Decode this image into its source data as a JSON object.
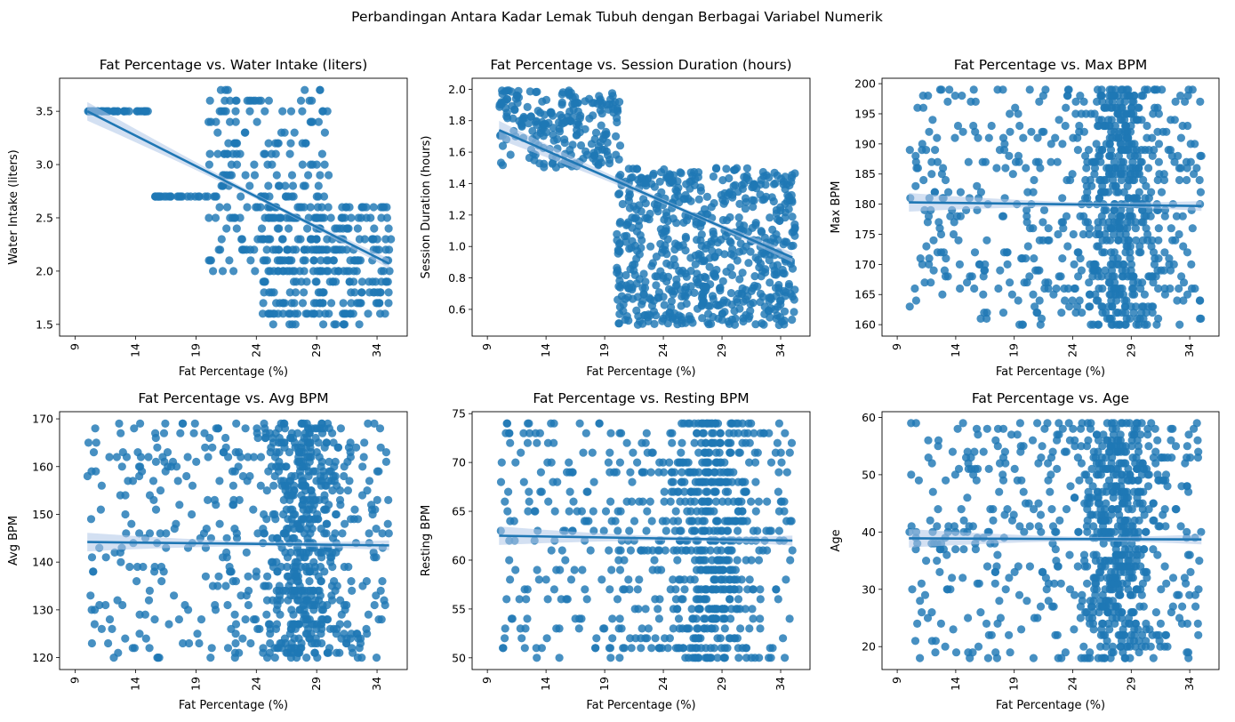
{
  "suptitle": "Perbandingan Antara Kadar Lemak Tubuh dengan Berbagai Variabel Numerik",
  "style": {
    "point_color": "#1f77b4",
    "line_color": "#1f77b4",
    "ci_color": "#aec7e8"
  },
  "chart_data": [
    {
      "type": "scatter",
      "title": "Fat Percentage vs. Water Intake (liters)",
      "xlabel": "Fat Percentage (%)",
      "ylabel": "Water Intake (liters)",
      "xlim": [
        7.7,
        36.5
      ],
      "ylim": [
        1.39,
        3.81
      ],
      "xticks": [
        "9",
        "14",
        "19",
        "24",
        "29",
        "34"
      ],
      "yticks": [
        "1.5",
        "2.0",
        "2.5",
        "3.0",
        "3.5"
      ],
      "regression": {
        "x": [
          10,
          35
        ],
        "y": [
          3.5,
          2.07
        ]
      },
      "gen": {
        "mode": "water",
        "n": 560,
        "seed": 11
      }
    },
    {
      "type": "scatter",
      "title": "Fat Percentage vs. Session Duration (hours)",
      "xlabel": "Fat Percentage (%)",
      "ylabel": "Session Duration (hours)",
      "xlim": [
        7.7,
        36.5
      ],
      "ylim": [
        0.43,
        2.07
      ],
      "xticks": [
        "9",
        "14",
        "19",
        "24",
        "29",
        "34"
      ],
      "yticks": [
        "0.6",
        "0.8",
        "1.0",
        "1.2",
        "1.4",
        "1.6",
        "1.8",
        "2.0"
      ],
      "regression": {
        "x": [
          10,
          35
        ],
        "y": [
          1.74,
          0.93
        ]
      },
      "gen": {
        "mode": "session",
        "n": 880,
        "seed": 23
      }
    },
    {
      "type": "scatter",
      "title": "Fat Percentage vs. Max BPM",
      "xlabel": "Fat Percentage (%)",
      "ylabel": "Max BPM",
      "xlim": [
        7.7,
        36.5
      ],
      "ylim": [
        158.1,
        200.9
      ],
      "xticks": [
        "9",
        "14",
        "19",
        "24",
        "29",
        "34"
      ],
      "yticks": [
        "160",
        "165",
        "170",
        "175",
        "180",
        "185",
        "190",
        "195",
        "200"
      ],
      "regression": {
        "x": [
          10,
          35
        ],
        "y": [
          180.3,
          179.7
        ]
      },
      "gen": {
        "mode": "uniform",
        "n": 820,
        "seed": 37,
        "lo": 160,
        "hi": 199
      }
    },
    {
      "type": "scatter",
      "title": "Fat Percentage vs. Avg BPM",
      "xlabel": "Fat Percentage (%)",
      "ylabel": "Avg BPM",
      "xlim": [
        7.7,
        36.5
      ],
      "ylim": [
        117.5,
        171.5
      ],
      "xticks": [
        "9",
        "14",
        "19",
        "24",
        "29",
        "34"
      ],
      "yticks": [
        "120",
        "130",
        "140",
        "150",
        "160",
        "170"
      ],
      "regression": {
        "x": [
          10,
          35
        ],
        "y": [
          144.2,
          143.5
        ]
      },
      "gen": {
        "mode": "uniform",
        "n": 820,
        "seed": 41,
        "lo": 120,
        "hi": 169
      }
    },
    {
      "type": "scatter",
      "title": "Fat Percentage vs. Resting BPM",
      "xlabel": "Fat Percentage (%)",
      "ylabel": "Resting BPM",
      "xlim": [
        7.7,
        36.5
      ],
      "ylim": [
        48.8,
        75.2
      ],
      "xticks": [
        "9",
        "14",
        "19",
        "24",
        "29",
        "34"
      ],
      "yticks": [
        "50",
        "55",
        "60",
        "65",
        "70",
        "75"
      ],
      "regression": {
        "x": [
          10,
          35
        ],
        "y": [
          62.5,
          62.0
        ]
      },
      "gen": {
        "mode": "uniform",
        "n": 820,
        "seed": 53,
        "lo": 50,
        "hi": 74
      }
    },
    {
      "type": "scatter",
      "title": "Fat Percentage vs. Age",
      "xlabel": "Fat Percentage (%)",
      "ylabel": "Age",
      "xlim": [
        7.7,
        36.5
      ],
      "ylim": [
        16.0,
        61.0
      ],
      "xticks": [
        "9",
        "14",
        "19",
        "24",
        "29",
        "34"
      ],
      "yticks": [
        "20",
        "30",
        "40",
        "50",
        "60"
      ],
      "regression": {
        "x": [
          10,
          35
        ],
        "y": [
          38.9,
          38.7
        ]
      },
      "gen": {
        "mode": "uniform",
        "n": 820,
        "seed": 67,
        "lo": 18,
        "hi": 59
      }
    }
  ]
}
